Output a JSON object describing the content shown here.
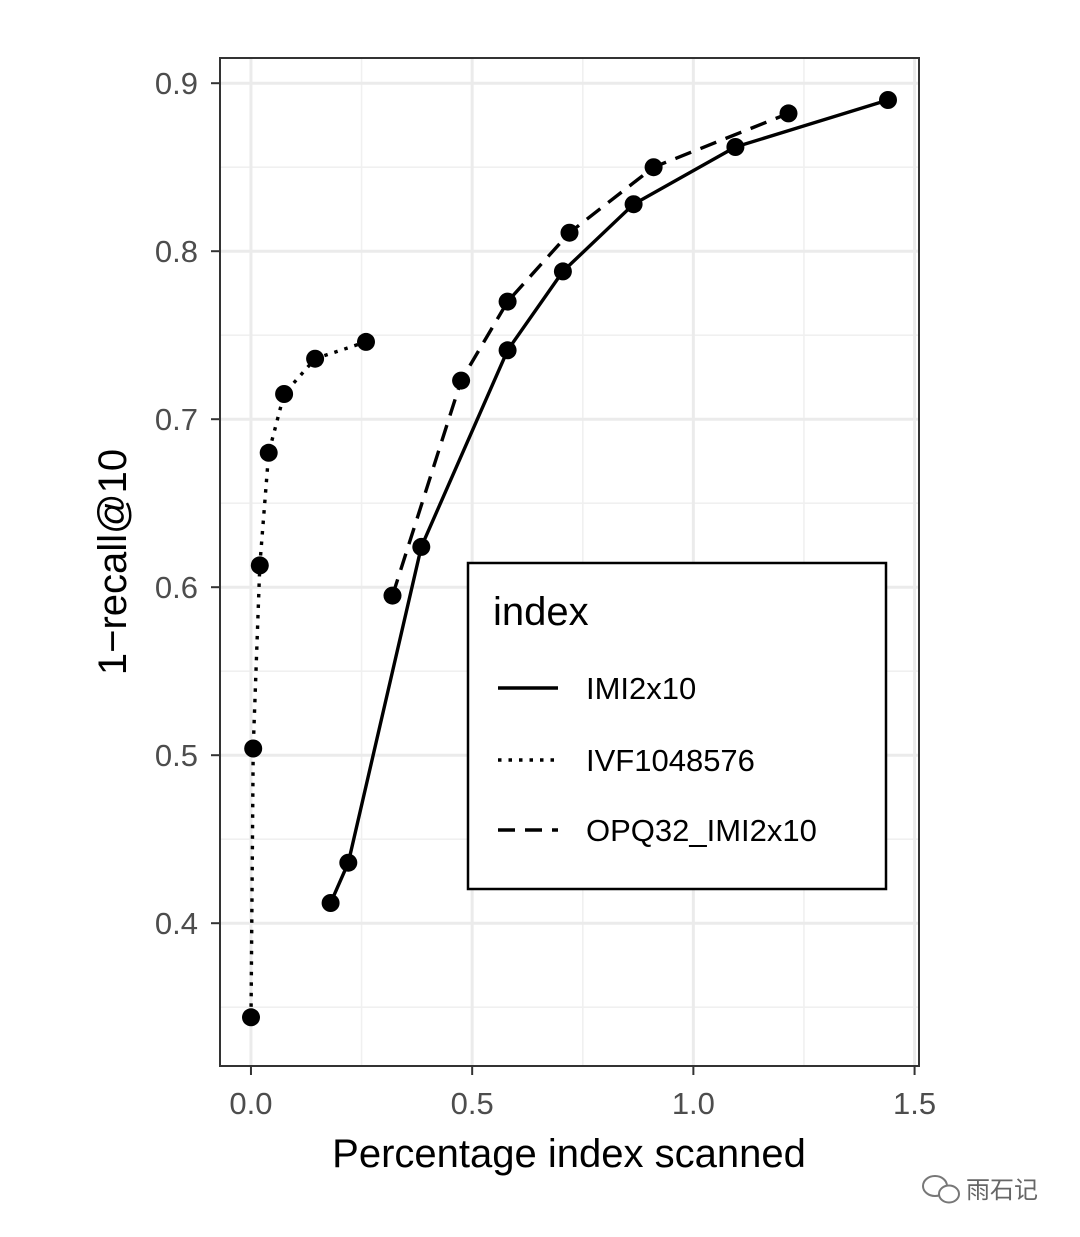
{
  "chart_data": {
    "type": "line",
    "xlabel": "Percentage index scanned",
    "ylabel": "1−recall@10",
    "xlim": [
      -0.07,
      1.51
    ],
    "ylim": [
      0.315,
      0.915
    ],
    "x_ticks": [
      {
        "value": 0.0,
        "label": "0.0"
      },
      {
        "value": 0.5,
        "label": "0.5"
      },
      {
        "value": 1.0,
        "label": "1.0"
      },
      {
        "value": 1.5,
        "label": "1.5"
      }
    ],
    "y_ticks": [
      {
        "value": 0.4,
        "label": "0.4"
      },
      {
        "value": 0.5,
        "label": "0.5"
      },
      {
        "value": 0.6,
        "label": "0.6"
      },
      {
        "value": 0.7,
        "label": "0.7"
      },
      {
        "value": 0.8,
        "label": "0.8"
      },
      {
        "value": 0.9,
        "label": "0.9"
      }
    ],
    "grid": true,
    "legend_title": "index",
    "legend_position": "right",
    "series": [
      {
        "name": "IMI2x10",
        "line_style": "solid",
        "color": "#000000",
        "points": [
          [
            0.18,
            0.412
          ],
          [
            0.22,
            0.436
          ],
          [
            0.385,
            0.624
          ],
          [
            0.58,
            0.741
          ],
          [
            0.705,
            0.788
          ],
          [
            0.865,
            0.828
          ],
          [
            1.095,
            0.862
          ],
          [
            1.44,
            0.89
          ]
        ]
      },
      {
        "name": "IVF1048576",
        "line_style": "dotted",
        "color": "#000000",
        "points": [
          [
            0.0,
            0.344
          ],
          [
            0.005,
            0.504
          ],
          [
            0.02,
            0.613
          ],
          [
            0.04,
            0.68
          ],
          [
            0.075,
            0.715
          ],
          [
            0.145,
            0.736
          ],
          [
            0.26,
            0.746
          ]
        ]
      },
      {
        "name": "OPQ32_IMI2x10",
        "line_style": "dashed",
        "color": "#000000",
        "points": [
          [
            0.32,
            0.595
          ],
          [
            0.475,
            0.723
          ],
          [
            0.58,
            0.77
          ],
          [
            0.72,
            0.811
          ],
          [
            0.91,
            0.85
          ],
          [
            1.215,
            0.882
          ]
        ]
      }
    ]
  },
  "watermark": {
    "icon": "wechat-icon",
    "text": "雨石记"
  }
}
